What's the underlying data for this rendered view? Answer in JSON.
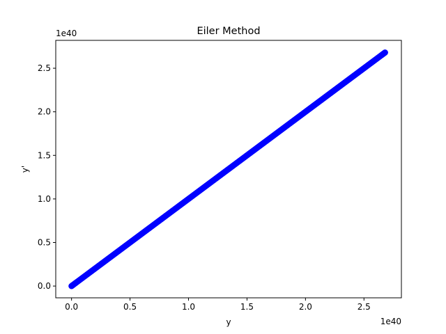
{
  "chart_data": {
    "type": "scatter",
    "title": "Eiler Method",
    "xlabel": "y",
    "ylabel": "y'",
    "x_offset_label": "1e40",
    "y_offset_label": "1e40",
    "xlim": [
      -0.135,
      2.82
    ],
    "ylim": [
      -0.135,
      2.82
    ],
    "xticks": [
      0.0,
      0.5,
      1.0,
      1.5,
      2.0,
      2.5
    ],
    "yticks": [
      0.0,
      0.5,
      1.0,
      1.5,
      2.0,
      2.5
    ],
    "xtick_labels": [
      "0.0",
      "0.5",
      "1.0",
      "1.5",
      "2.0",
      "2.5"
    ],
    "ytick_labels": [
      "0.0",
      "0.5",
      "1.0",
      "1.5",
      "2.0",
      "2.5"
    ],
    "grid": false,
    "marker_color": "#0000ff",
    "series": [
      {
        "x": [
          0.0,
          0.02,
          0.05,
          0.1,
          0.15,
          0.2,
          0.25,
          0.3,
          0.35,
          0.4,
          0.45,
          0.5,
          0.55,
          0.6,
          0.65,
          0.7,
          0.75,
          0.8,
          0.85,
          0.9,
          0.95,
          1.0,
          1.05,
          1.1,
          1.15,
          1.2,
          1.25,
          1.3,
          1.35,
          1.4,
          1.45,
          1.5,
          1.55,
          1.6,
          1.65,
          1.7,
          1.75,
          1.8,
          1.85,
          1.9,
          1.95,
          2.0,
          2.05,
          2.1,
          2.15,
          2.2,
          2.25,
          2.3,
          2.35,
          2.4,
          2.45,
          2.5,
          2.55,
          2.6,
          2.65,
          2.68
        ],
        "y": [
          0.0,
          0.02,
          0.05,
          0.1,
          0.15,
          0.2,
          0.25,
          0.3,
          0.35,
          0.4,
          0.45,
          0.5,
          0.55,
          0.6,
          0.65,
          0.7,
          0.75,
          0.8,
          0.85,
          0.9,
          0.95,
          1.0,
          1.05,
          1.1,
          1.15,
          1.2,
          1.25,
          1.3,
          1.35,
          1.4,
          1.45,
          1.5,
          1.55,
          1.6,
          1.65,
          1.7,
          1.75,
          1.8,
          1.85,
          1.9,
          1.95,
          2.0,
          2.05,
          2.1,
          2.15,
          2.2,
          2.25,
          2.3,
          2.35,
          2.4,
          2.45,
          2.5,
          2.55,
          2.6,
          2.65,
          2.68
        ]
      }
    ]
  }
}
